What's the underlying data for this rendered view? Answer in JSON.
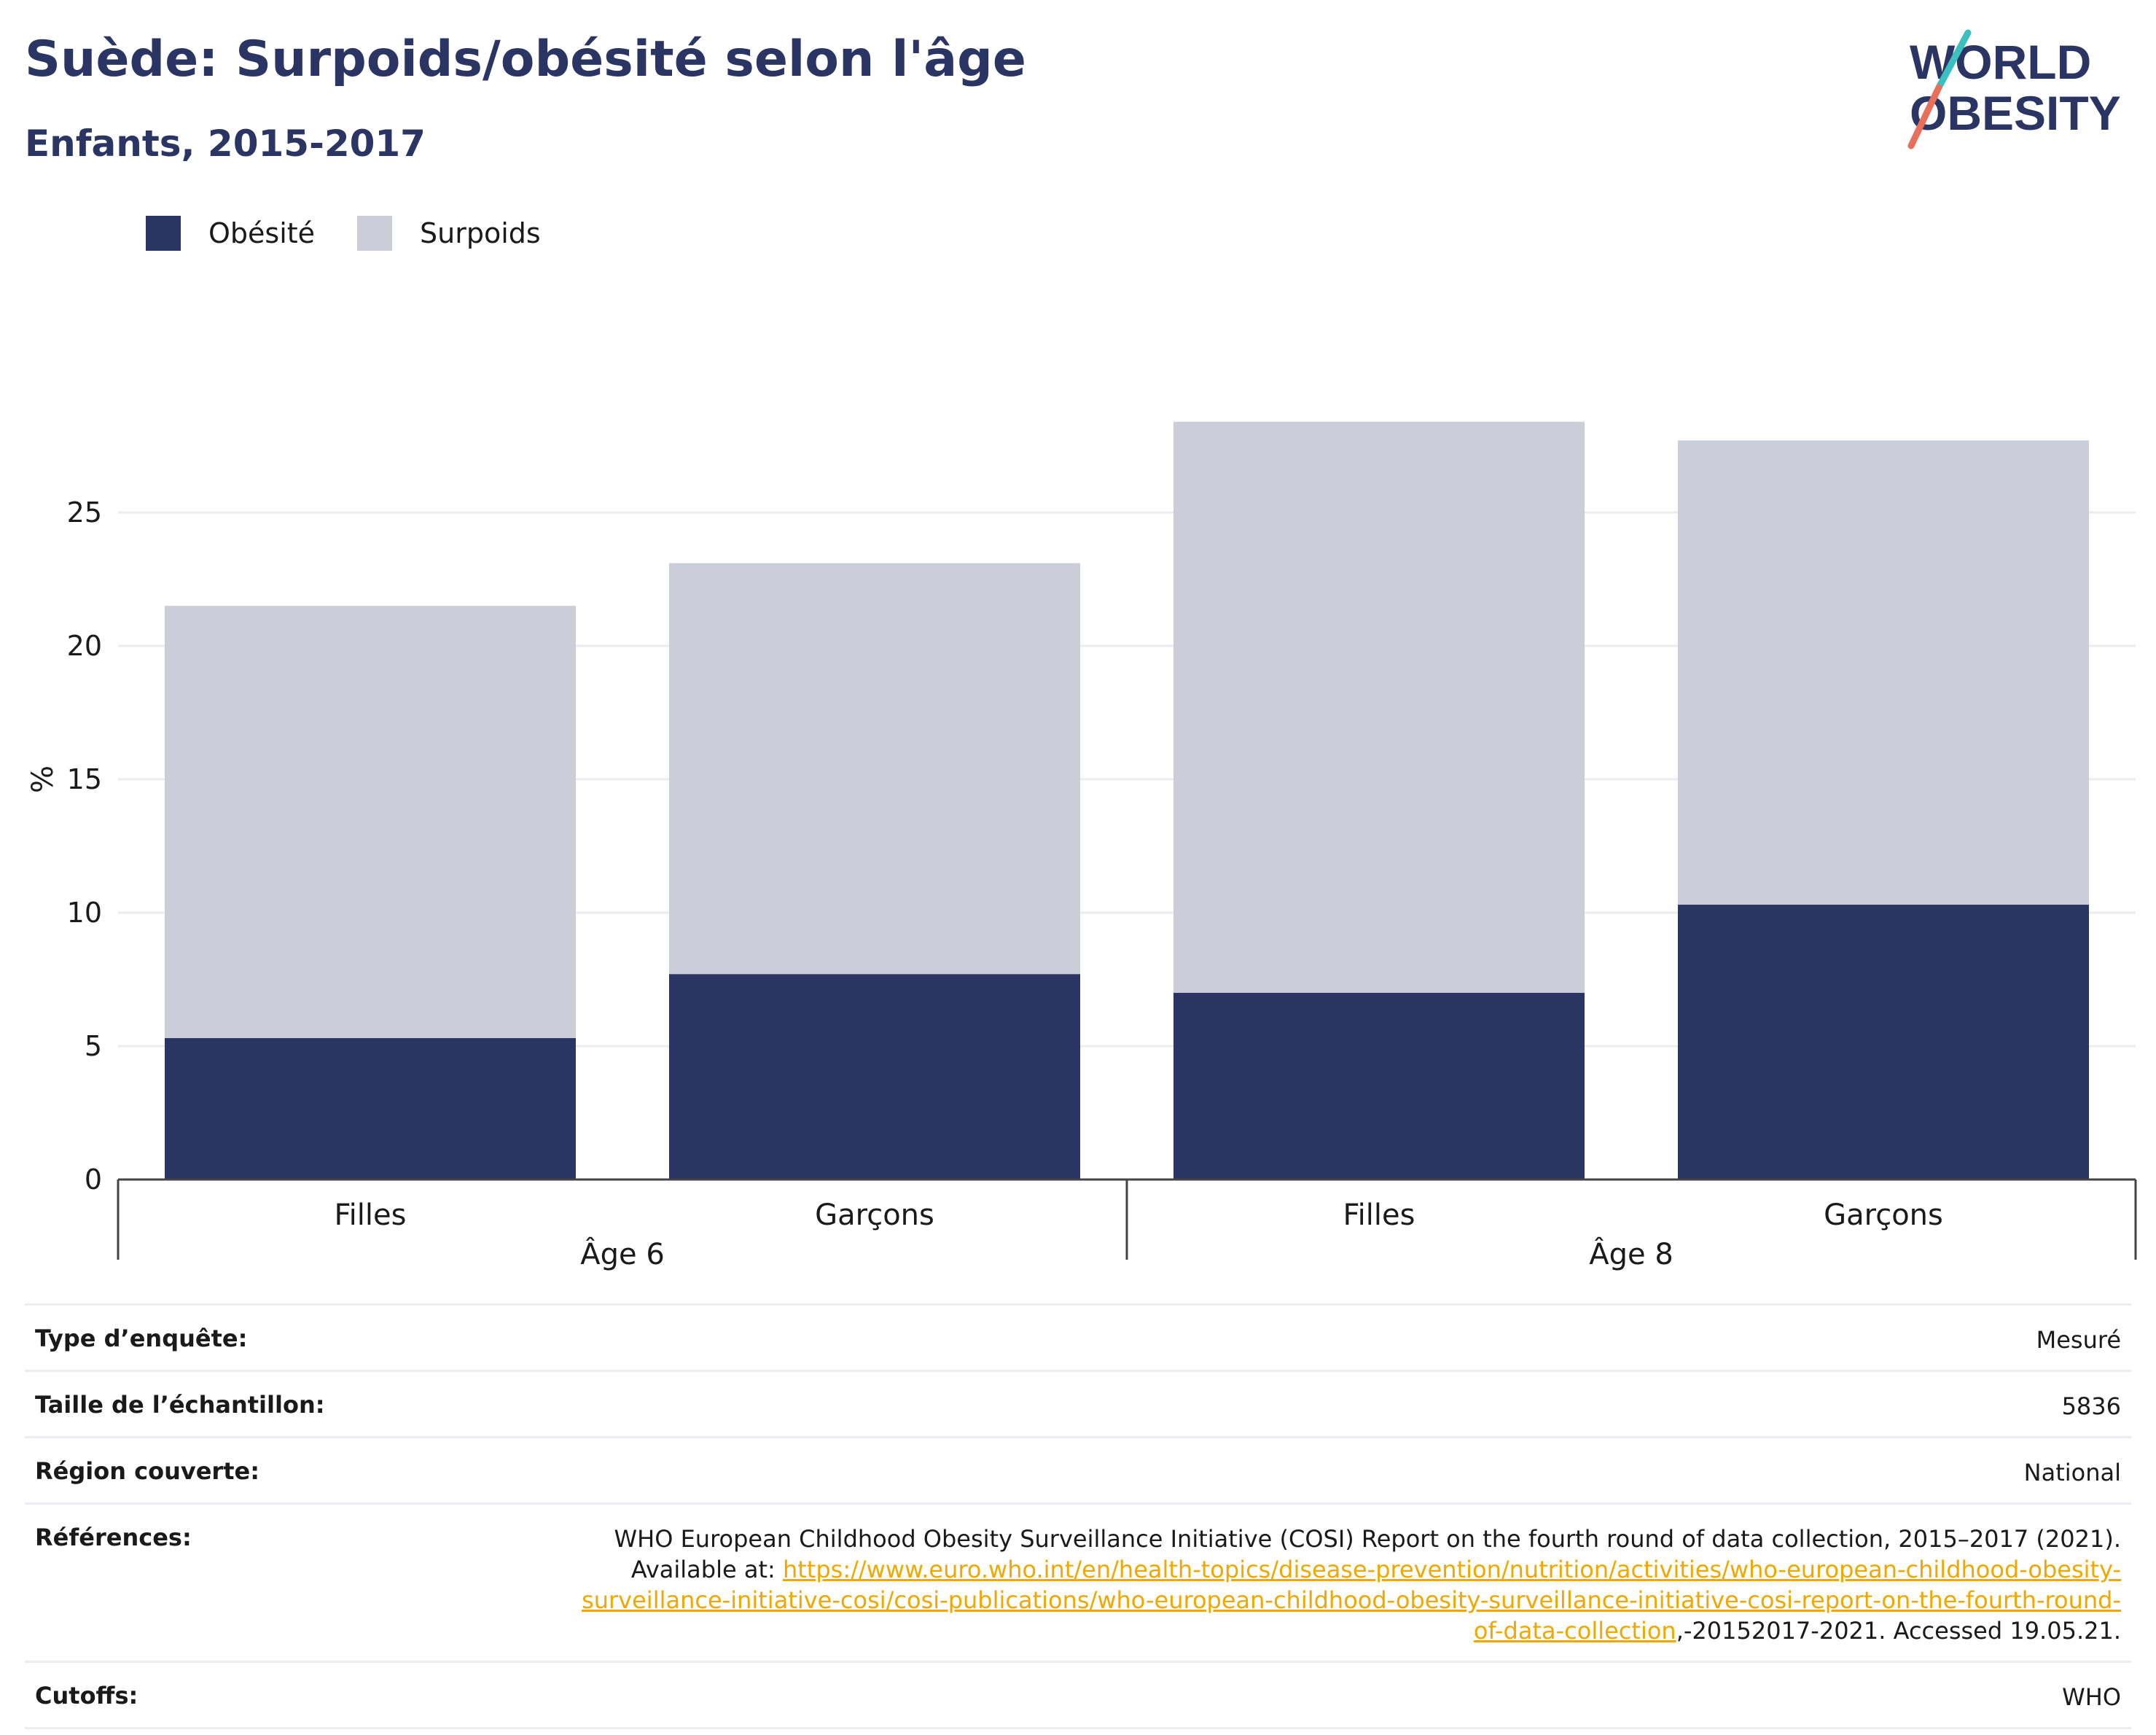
{
  "header": {
    "title": "Suède: Surpoids/obésité selon l'âge",
    "subtitle": "Enfants, 2015-2017"
  },
  "logo": {
    "line1": "WORLD",
    "line2": "OBESITY"
  },
  "chart_data": {
    "type": "bar",
    "stacked": true,
    "ylabel": "%",
    "ylim": [
      0,
      30
    ],
    "yticks": [
      0,
      5,
      10,
      15,
      20,
      25
    ],
    "grid": true,
    "legend_position": "top-left",
    "groups": [
      {
        "label": "Âge 6",
        "categories": [
          "Filles",
          "Garçons"
        ]
      },
      {
        "label": "Âge 8",
        "categories": [
          "Filles",
          "Garçons"
        ]
      }
    ],
    "series": [
      {
        "name": "Obésité",
        "color": "#2a3563",
        "values": [
          5.3,
          7.7,
          7.0,
          10.3
        ]
      },
      {
        "name": "Surpoids",
        "color": "#cbcdd8",
        "values": [
          16.2,
          15.4,
          21.4,
          17.4
        ]
      }
    ]
  },
  "info": {
    "survey_type": {
      "label": "Type d’enquête:",
      "value": "Mesuré"
    },
    "sample_size": {
      "label": "Taille de l’échantillon:",
      "value": "5836"
    },
    "region": {
      "label": "Région couverte:",
      "value": "National"
    },
    "references": {
      "label": "Références:",
      "text_before": "WHO European Childhood Obesity Surveillance Initiative (COSI) Report on the fourth round of data collection, 2015–2017 (2021). Available at: ",
      "link": "https://www.euro.who.int/en/health-topics/disease-prevention/nutrition/activities/who-european-childhood-obesity-surveillance-initiative-cosi/cosi-publications/who-european-childhood-obesity-surveillance-initiative-cosi-report-on-the-fourth-round-of-data-collection",
      "text_after": ",-20152017-2021. Accessed 19.05.21."
    },
    "cutoffs": {
      "label": "Cutoffs:",
      "value": "WHO"
    }
  }
}
